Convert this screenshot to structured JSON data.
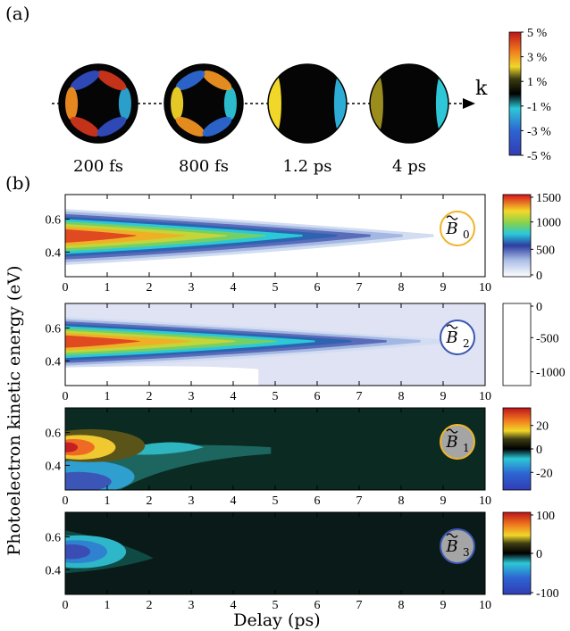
{
  "chart_data": [
    {
      "type": "heatmap",
      "panel_label": "(a)",
      "subtype": "angular-distribution-maps",
      "axis_label": "k",
      "snapshots": [
        {
          "label": "200 fs",
          "lobes": 6,
          "amplitude": 5
        },
        {
          "label": "800 fs",
          "lobes": 6,
          "amplitude": 3.5
        },
        {
          "label": "1.2 ps",
          "lobes": 2,
          "amplitude": 2
        },
        {
          "label": "4 ps",
          "lobes": 2,
          "amplitude": 1.2
        }
      ],
      "colorbar": {
        "ticks": [
          "5 %",
          "3 %",
          "1 %",
          "-1 %",
          "-3 %",
          "-5 %"
        ],
        "values": [
          5,
          3,
          1,
          -1,
          -3,
          -5
        ],
        "range": [
          -5,
          5
        ]
      }
    },
    {
      "type": "heatmap",
      "panel_label": "(b)",
      "xlabel": "Delay (ps)",
      "ylabel": "Photoelectron kinetic energy (eV)",
      "xlim": [
        0,
        10
      ],
      "ylim": [
        0.25,
        0.75
      ],
      "xticks": [
        "0",
        "1",
        "2",
        "3",
        "4",
        "5",
        "6",
        "7",
        "8",
        "9",
        "10"
      ],
      "yticks": [
        "0.4",
        "0.6"
      ],
      "panels": [
        {
          "name": "B0",
          "badge_base": "B",
          "badge_sub": "0",
          "badge_color": "#f0b429",
          "badge_fill": "#ffffff",
          "colormap": "sequential",
          "range": [
            0,
            1500
          ],
          "colorbar_ticks": [
            "1500",
            "1000",
            "500",
            "0"
          ],
          "peak": {
            "delay": 0.2,
            "energy": 0.5,
            "value": 1500
          },
          "decay_ps": 2.2,
          "energy_width": 0.06,
          "extent_ps": 9.5,
          "background": "#ffffff"
        },
        {
          "name": "B2",
          "badge_base": "B",
          "badge_sub": "2",
          "badge_color": "#3b57b3",
          "badge_fill": "#ffffff",
          "colormap": "sequential-reversed",
          "range": [
            -1200,
            0
          ],
          "colorbar_ticks": [
            "0",
            "-500",
            "-1000"
          ],
          "peak": {
            "delay": 0.2,
            "energy": 0.52,
            "value": -1200
          },
          "decay_ps": 2.4,
          "energy_width": 0.055,
          "extent_ps": 10,
          "background": "#dfe3f4"
        },
        {
          "name": "B1",
          "badge_base": "B",
          "badge_sub": "1",
          "badge_color": "#f0b429",
          "badge_fill": "#a5a5a5",
          "colormap": "diverging",
          "range": [
            -35,
            35
          ],
          "colorbar_ticks": [
            "20",
            "0",
            "-20"
          ],
          "peak": {
            "delay": 0.2,
            "energy": 0.5,
            "value": 35
          },
          "trough": {
            "delay": 0.4,
            "energy": 0.33,
            "value": -35
          },
          "background": "#0a2a22"
        },
        {
          "name": "B3",
          "badge_base": "B",
          "badge_sub": "3",
          "badge_color": "#3b57b3",
          "badge_fill": "#a5a5a5",
          "colormap": "diverging",
          "range": [
            -100,
            100
          ],
          "colorbar_ticks": [
            "100",
            "0",
            "-100"
          ],
          "trough": {
            "delay": 0.3,
            "energy": 0.52,
            "value": -100
          },
          "background": "#0a1a18"
        }
      ]
    }
  ]
}
